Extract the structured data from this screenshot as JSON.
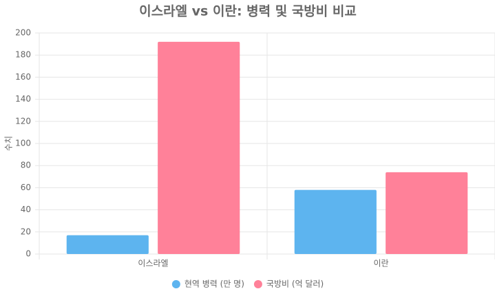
{
  "chart_data": {
    "type": "bar",
    "title": "이스라엘 vs 이란: 병력 및 국방비 비교",
    "y_label": "수치",
    "categories": [
      "이스라엘",
      "이란"
    ],
    "series": [
      {
        "name": "현역 병력 (만 명)",
        "color": "#5db4ef",
        "values": [
          17,
          58
        ]
      },
      {
        "name": "국방비 (억 달러)",
        "color": "#ff8199",
        "values": [
          192,
          74
        ]
      }
    ],
    "ylim": [
      0,
      200
    ],
    "yticks": [
      0,
      20,
      40,
      60,
      80,
      100,
      120,
      140,
      160,
      180,
      200
    ],
    "grid": true,
    "legend": "bottom"
  }
}
